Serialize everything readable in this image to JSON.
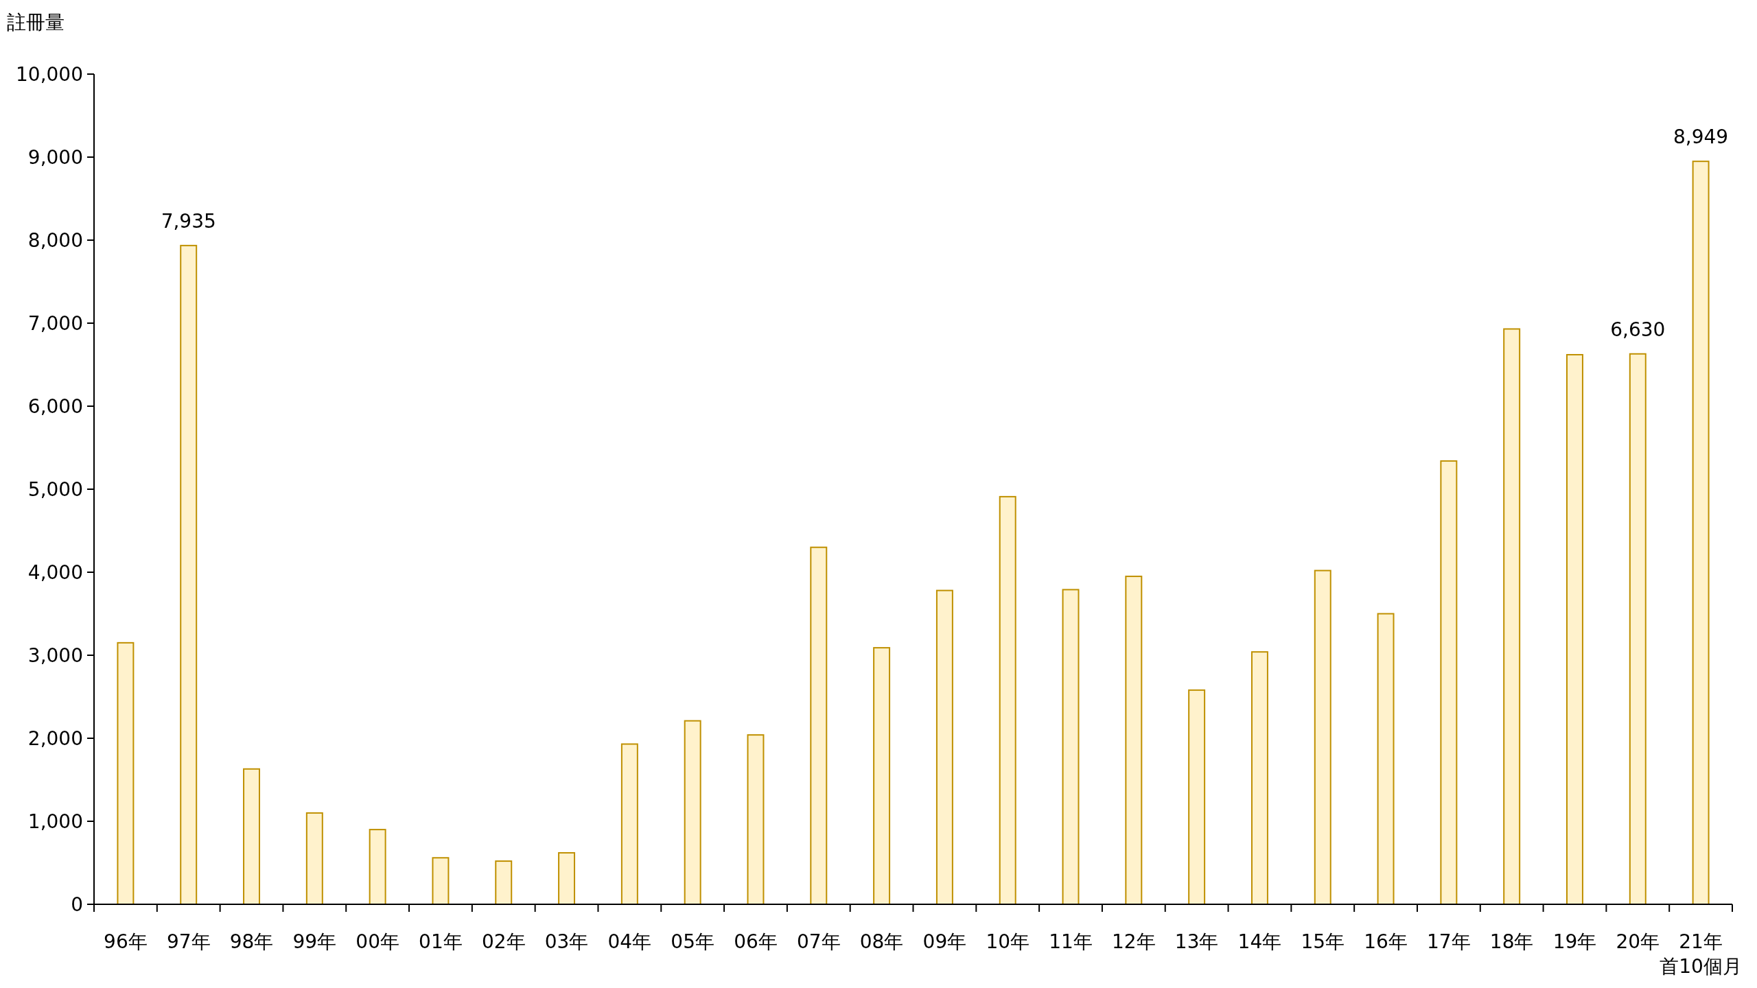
{
  "chart_data": {
    "type": "bar",
    "ylabel": "註冊量",
    "categories": [
      "96年",
      "97年",
      "98年",
      "99年",
      "00年",
      "01年",
      "02年",
      "03年",
      "04年",
      "05年",
      "06年",
      "07年",
      "08年",
      "09年",
      "10年",
      "11年",
      "12年",
      "13年",
      "14年",
      "15年",
      "16年",
      "17年",
      "18年",
      "19年",
      "20年",
      "21年首10個月"
    ],
    "values": [
      3150,
      7935,
      1630,
      1100,
      900,
      560,
      520,
      620,
      1930,
      2210,
      2040,
      4300,
      3090,
      3780,
      4910,
      3790,
      3950,
      2580,
      3040,
      4020,
      3500,
      5340,
      6930,
      6620,
      6630,
      8949
    ],
    "value_labels": [
      null,
      "7,935",
      null,
      null,
      null,
      null,
      null,
      null,
      null,
      null,
      null,
      null,
      null,
      null,
      null,
      null,
      null,
      null,
      null,
      null,
      null,
      null,
      null,
      null,
      "6,630",
      "8,949"
    ],
    "color": "#fff2cc",
    "ylim": [
      0,
      10000
    ],
    "yticks": [
      0,
      {
        "value": 1000,
        "label": "1,000"
      },
      {
        "value": 2000,
        "label": "2,000"
      },
      {
        "value": 3000,
        "label": "3,000"
      },
      {
        "value": 4000,
        "label": "4,000"
      },
      {
        "value": 5000,
        "label": "5,000"
      },
      {
        "value": 6000,
        "label": "6,000"
      },
      {
        "value": 7000,
        "label": "7,000"
      },
      {
        "value": 8000,
        "label": "8,000"
      },
      {
        "value": 9000,
        "label": "9,000"
      },
      {
        "value": 10000,
        "label": "10,000"
      }
    ]
  }
}
